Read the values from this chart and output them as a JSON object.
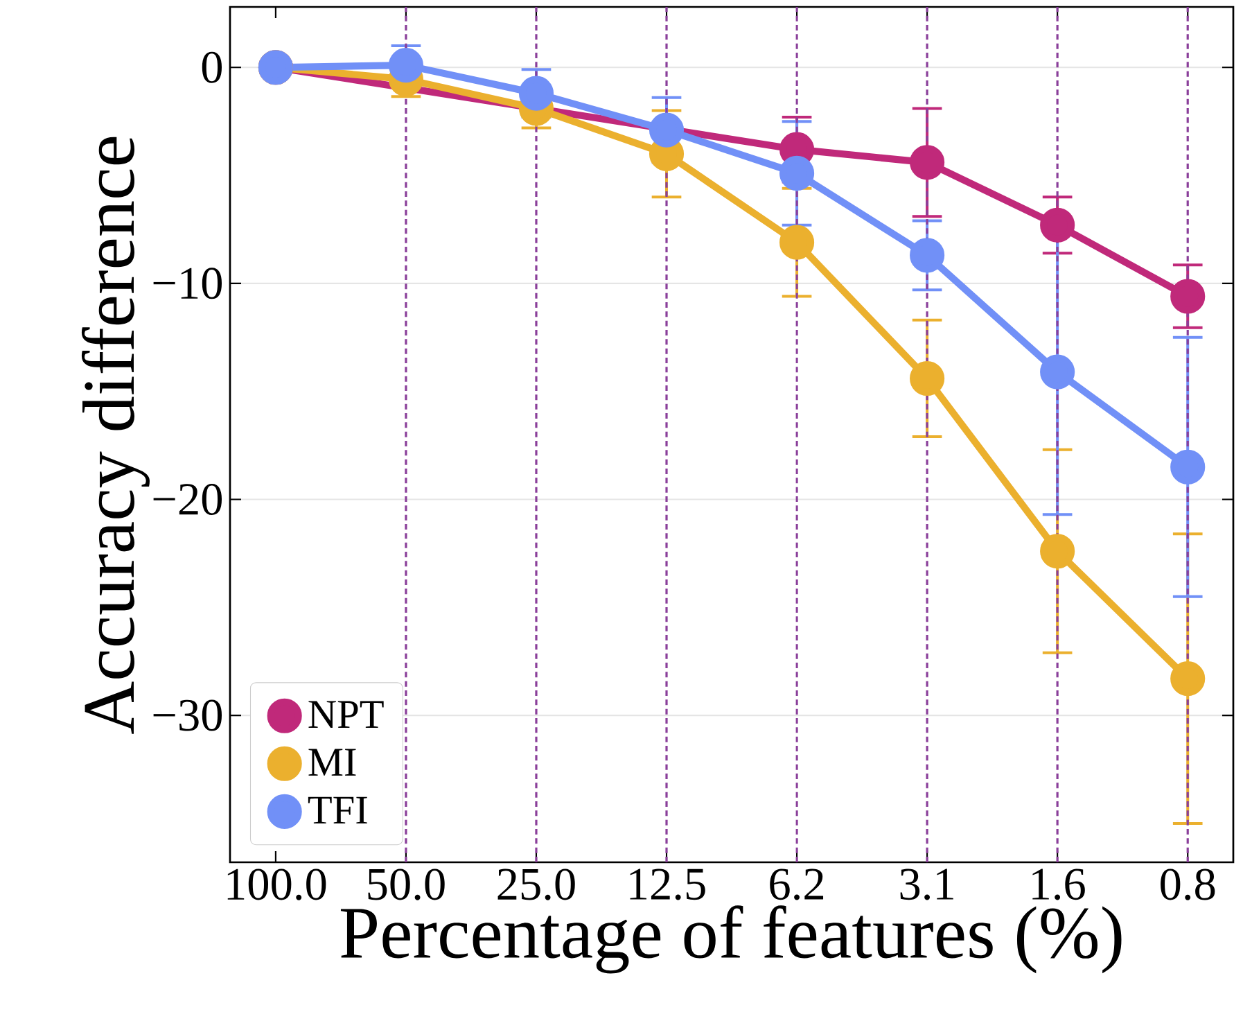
{
  "chart_data": {
    "type": "line",
    "xlabel": "Percentage of features (%)",
    "ylabel": "Accuracy difference",
    "x": [
      100,
      50,
      25,
      12.5,
      6.25,
      3.125,
      1.5625,
      0.78125
    ],
    "series": [
      {
        "name": "NPT",
        "color": "#c0297a",
        "values": [
          0,
          null,
          null,
          null,
          -3.8,
          -4.4,
          -7.3,
          -10.6
        ],
        "errors": [
          null,
          null,
          null,
          null,
          1.5,
          2.5,
          1.3,
          1.45
        ]
      },
      {
        "name": "MI",
        "color": "#ebb02e",
        "values": [
          0,
          -0.55,
          -1.9,
          -4.0,
          -8.1,
          -14.4,
          -22.4,
          -28.3
        ],
        "errors": [
          null,
          0.8,
          0.9,
          2.0,
          2.5,
          2.7,
          4.7,
          6.7
        ]
      },
      {
        "name": "TFI",
        "color": "#7190f7",
        "values": [
          0,
          0.1,
          -1.2,
          -2.9,
          -4.9,
          -8.7,
          -14.1,
          -18.5
        ],
        "errors": [
          null,
          0.9,
          1.1,
          1.5,
          2.4,
          1.6,
          6.6,
          6.0
        ]
      }
    ],
    "log": "x",
    "xlim": [
      127.5,
      0.613
    ],
    "xticks": [
      {
        "value": 100,
        "label": "100.0"
      },
      {
        "value": 50,
        "label": "50.0"
      },
      {
        "value": 25,
        "label": "25.0"
      },
      {
        "value": 12.5,
        "label": "12.5"
      },
      {
        "value": 6.25,
        "label": "6.2"
      },
      {
        "value": 3.125,
        "label": "3.1"
      },
      {
        "value": 1.5625,
        "label": "1.6"
      },
      {
        "value": 0.78125,
        "label": "0.8"
      }
    ],
    "ylim": [
      -36.8,
      2.8
    ],
    "yticks": [
      {
        "value": 0,
        "label": "0"
      },
      {
        "value": -10,
        "label": "−10"
      },
      {
        "value": -20,
        "label": "−20"
      },
      {
        "value": -30,
        "label": "−30"
      }
    ],
    "ref_lines": [
      {
        "axis": "x",
        "value": 50,
        "color": "#8a3f9a",
        "line_style": "dashed"
      },
      {
        "axis": "x",
        "value": 25,
        "color": "#8a3f9a",
        "line_style": "dashed"
      },
      {
        "axis": "x",
        "value": 12.5,
        "color": "#8a3f9a",
        "line_style": "dashed"
      },
      {
        "axis": "x",
        "value": 6.25,
        "color": "#8a3f9a",
        "line_style": "dashed"
      },
      {
        "axis": "x",
        "value": 3.125,
        "color": "#8a3f9a",
        "line_style": "dashed"
      },
      {
        "axis": "x",
        "value": 1.5625,
        "color": "#8a3f9a",
        "line_style": "dashed"
      },
      {
        "axis": "x",
        "value": 0.78125,
        "color": "#8a3f9a",
        "line_style": "dashed"
      }
    ],
    "grid": "y",
    "legend": "bottom left",
    "marker": "circle",
    "line_style": "solid"
  }
}
